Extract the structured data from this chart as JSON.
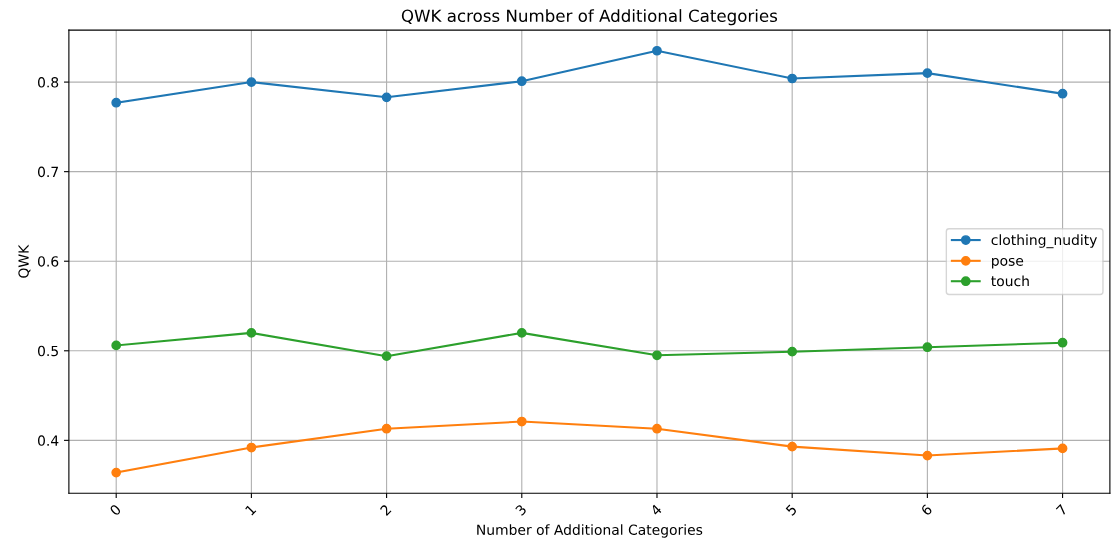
{
  "chart_data": {
    "type": "line",
    "title": "QWK across Number of Additional Categories",
    "xlabel": "Number of Additional Categories",
    "ylabel": "QWK",
    "x": [
      0,
      1,
      2,
      3,
      4,
      5,
      6,
      7
    ],
    "series": [
      {
        "name": "clothing_nudity",
        "color": "#1f77b4",
        "values": [
          0.777,
          0.8,
          0.783,
          0.801,
          0.835,
          0.804,
          0.81,
          0.787
        ]
      },
      {
        "name": "pose",
        "color": "#ff7f0e",
        "values": [
          0.364,
          0.392,
          0.413,
          0.421,
          0.413,
          0.393,
          0.383,
          0.391
        ]
      },
      {
        "name": "touch",
        "color": "#2ca02c",
        "values": [
          0.506,
          0.52,
          0.494,
          0.52,
          0.495,
          0.499,
          0.504,
          0.509
        ]
      }
    ],
    "xlim": [
      -0.35,
      7.35
    ],
    "xticks": [
      0,
      1,
      2,
      3,
      4,
      5,
      6,
      7
    ],
    "ylim": [
      0.341,
      0.858
    ],
    "yticks": [
      0.4,
      0.5,
      0.6,
      0.7,
      0.8
    ],
    "grid": true,
    "legend": "center right",
    "marker": "circle",
    "line_style": "solid"
  }
}
